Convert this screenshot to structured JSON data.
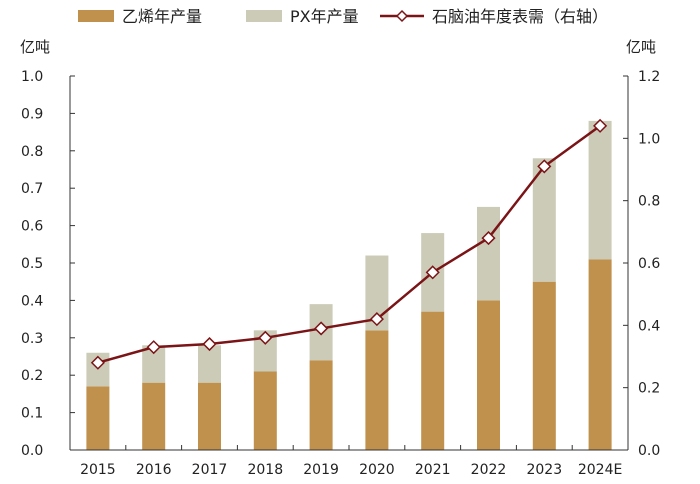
{
  "chart_data": {
    "type": "bar",
    "stacked": true,
    "categories": [
      "2015",
      "2016",
      "2017",
      "2018",
      "2019",
      "2020",
      "2021",
      "2022",
      "2023",
      "2024E"
    ],
    "series": [
      {
        "name": "乙烯年产量",
        "axis": "left",
        "color": "#C0904D",
        "values": [
          0.17,
          0.18,
          0.18,
          0.21,
          0.24,
          0.32,
          0.37,
          0.4,
          0.45,
          0.51
        ]
      },
      {
        "name": "PX年产量",
        "axis": "left",
        "color": "#CBCBB8",
        "values": [
          0.09,
          0.1,
          0.1,
          0.11,
          0.15,
          0.2,
          0.21,
          0.25,
          0.33,
          0.37
        ]
      },
      {
        "name": "石脑油年度表需（右轴）",
        "axis": "right",
        "type": "line",
        "color": "#7B1416",
        "values": [
          0.28,
          0.33,
          0.34,
          0.36,
          0.39,
          0.42,
          0.57,
          0.68,
          0.91,
          1.04
        ]
      }
    ],
    "left_axis": {
      "unit": "亿吨",
      "min": 0,
      "max": 1.0,
      "ticks": [
        "0.0",
        "0.1",
        "0.2",
        "0.3",
        "0.4",
        "0.5",
        "0.6",
        "0.7",
        "0.8",
        "0.9",
        "1.0"
      ]
    },
    "right_axis": {
      "unit": "亿吨",
      "min": 0,
      "max": 1.2,
      "ticks": [
        "0.0",
        "0.2",
        "0.4",
        "0.6",
        "0.8",
        "1.0",
        "1.2"
      ]
    },
    "legend_position": "top",
    "grid": false
  }
}
